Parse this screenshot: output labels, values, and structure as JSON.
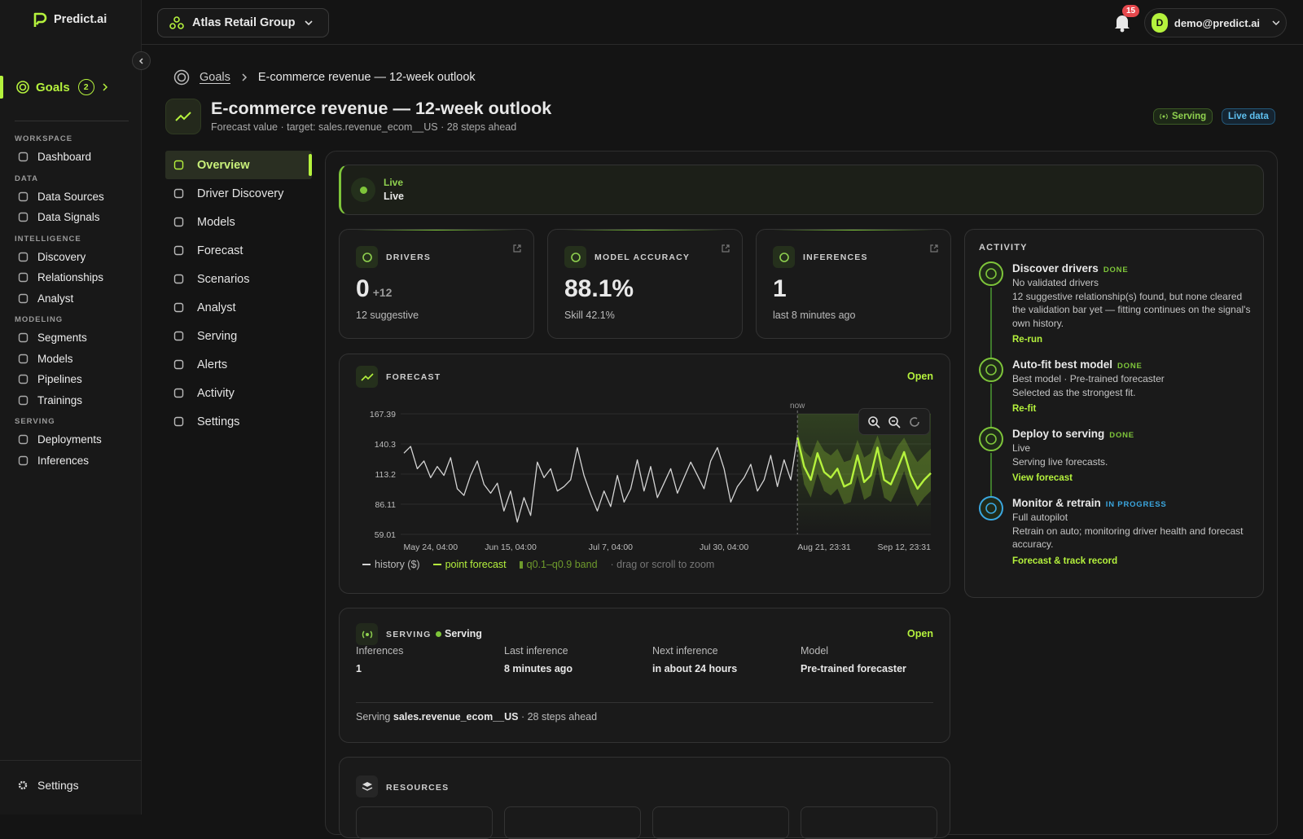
{
  "brand": "Predict.ai",
  "org": "Atlas Retail Group",
  "notifications": 15,
  "user": {
    "avatar": "D",
    "email": "demo@predict.ai"
  },
  "sidebar": {
    "goals": {
      "label": "Goals",
      "count": 2
    },
    "sections": [
      {
        "label": "WORKSPACE",
        "items": [
          "Dashboard"
        ]
      },
      {
        "label": "DATA",
        "items": [
          "Data Sources",
          "Data Signals"
        ]
      },
      {
        "label": "INTELLIGENCE",
        "items": [
          "Discovery",
          "Relationships",
          "Analyst"
        ]
      },
      {
        "label": "MODELING",
        "items": [
          "Segments",
          "Models",
          "Pipelines",
          "Trainings"
        ]
      },
      {
        "label": "SERVING",
        "items": [
          "Deployments",
          "Inferences"
        ]
      }
    ],
    "footer": "Settings"
  },
  "breadcrumb": [
    "Goals",
    "E-commerce revenue — 12-week outlook"
  ],
  "header": {
    "title": "E-commerce revenue — 12-week outlook",
    "subtitle": "Forecast value · target: sales.revenue_ecom__US · 28 steps ahead",
    "badges": [
      "Serving",
      "Live data"
    ]
  },
  "subnav": {
    "items": [
      "Overview",
      "Driver Discovery",
      "Models",
      "Forecast",
      "Scenarios",
      "Analyst",
      "Serving",
      "Alerts",
      "Activity",
      "Settings"
    ],
    "active": 0
  },
  "live": {
    "label": "Live",
    "status": "Live"
  },
  "metrics": [
    {
      "label": "DRIVERS",
      "value": 0,
      "delta": "+12",
      "note": "12 suggestive"
    },
    {
      "label": "MODEL ACCURACY",
      "value": "88.1%",
      "note": "Skill 42.1%"
    },
    {
      "label": "INFERENCES",
      "value": 1,
      "note": "last 8 minutes ago"
    }
  ],
  "forecast_card": {
    "label": "FORECAST",
    "action": "Open",
    "hint": "· drag or scroll to zoom"
  },
  "chart_data": {
    "type": "line",
    "annotation": "now",
    "categories": [
      null,
      null,
      null,
      null,
      "May 24, 04:00",
      null,
      null,
      null,
      null,
      null,
      null,
      null,
      null,
      null,
      null,
      null,
      "Jun 15, 04:00",
      null,
      null,
      null,
      null,
      null,
      null,
      null,
      null,
      null,
      null,
      null,
      null,
      null,
      null,
      "Jul 7, 04:00",
      null,
      null,
      null,
      null,
      null,
      null,
      null,
      null,
      null,
      null,
      null,
      null,
      null,
      null,
      null,
      null,
      "Jul 30, 04:00",
      null,
      null,
      null,
      null,
      null,
      null,
      null,
      null,
      null,
      null,
      null,
      null,
      null,
      null,
      "Aug 21, 23:31",
      null,
      null,
      null,
      null,
      null,
      null,
      null,
      null,
      null,
      null,
      null,
      "Sep 12, 23:31",
      null,
      null,
      null,
      null
    ],
    "series": [
      {
        "name": "history ($)",
        "color": "#d4d4d4",
        "values": [
          132,
          138,
          118,
          125,
          110,
          120,
          112,
          128,
          100,
          94,
          112,
          125,
          104,
          96,
          105,
          80,
          98,
          70,
          92,
          76,
          124,
          110,
          118,
          98,
          102,
          108,
          137,
          112,
          95,
          80,
          98,
          84,
          112,
          88,
          100,
          126,
          98,
          120,
          92,
          105,
          118,
          96,
          110,
          124,
          112,
          100,
          125,
          137,
          118,
          88,
          102,
          110,
          122,
          98,
          108,
          130,
          102,
          126,
          108,
          146,
          null,
          null,
          null,
          null,
          null,
          null,
          null,
          null,
          null,
          null,
          null,
          null,
          null,
          null,
          null,
          null,
          null,
          null,
          null,
          null
        ]
      },
      {
        "name": "point forecast",
        "color": "#b5f23d",
        "values": [
          null,
          null,
          null,
          null,
          null,
          null,
          null,
          null,
          null,
          null,
          null,
          null,
          null,
          null,
          null,
          null,
          null,
          null,
          null,
          null,
          null,
          null,
          null,
          null,
          null,
          null,
          null,
          null,
          null,
          null,
          null,
          null,
          null,
          null,
          null,
          null,
          null,
          null,
          null,
          null,
          null,
          null,
          null,
          null,
          null,
          null,
          null,
          null,
          null,
          null,
          null,
          null,
          null,
          null,
          null,
          null,
          null,
          null,
          null,
          146,
          120,
          108,
          132,
          115,
          110,
          118,
          102,
          105,
          130,
          106,
          112,
          137,
          108,
          104,
          118,
          133,
          112,
          100,
          108,
          114
        ]
      },
      {
        "name": "q0.1–q0.9 band",
        "color": "#6e9a2c",
        "values": [
          null,
          null,
          null,
          null,
          null,
          null,
          null,
          null,
          null,
          null,
          null,
          null,
          null,
          null,
          null,
          null,
          null,
          null,
          null,
          null,
          null,
          null,
          null,
          null,
          null,
          null,
          null,
          null,
          null,
          null,
          null,
          null,
          null,
          null,
          null,
          null,
          null,
          null,
          null,
          null,
          null,
          null,
          null,
          null,
          null,
          null,
          null,
          null,
          null,
          null,
          null,
          null,
          null,
          null,
          null,
          null,
          null,
          null,
          null,
          150,
          134,
          128,
          144,
          134,
          130,
          136,
          124,
          126,
          144,
          128,
          132,
          148,
          130,
          126,
          138,
          146,
          134,
          124,
          130,
          136
        ],
        "lower": [
          null,
          null,
          null,
          null,
          null,
          null,
          null,
          null,
          null,
          null,
          null,
          null,
          null,
          null,
          null,
          null,
          null,
          null,
          null,
          null,
          null,
          null,
          null,
          null,
          null,
          null,
          null,
          null,
          null,
          null,
          null,
          null,
          null,
          null,
          null,
          null,
          null,
          null,
          null,
          null,
          null,
          null,
          null,
          null,
          null,
          null,
          null,
          null,
          null,
          null,
          null,
          null,
          null,
          null,
          null,
          null,
          null,
          null,
          null,
          140,
          104,
          92,
          114,
          98,
          94,
          100,
          86,
          88,
          112,
          90,
          94,
          120,
          92,
          88,
          100,
          116,
          96,
          84,
          92,
          98
        ]
      }
    ],
    "ylim": [
      59.01,
      167.39
    ],
    "yticks": [
      59.01,
      86.11,
      113.2,
      140.3,
      167.39
    ],
    "grid": true
  },
  "serving": {
    "label": "SERVING",
    "status": "Serving",
    "action": "Open",
    "fields": [
      {
        "label": "Inferences",
        "value": 1
      },
      {
        "label": "Last inference",
        "value": "8 minutes ago"
      },
      {
        "label": "Next inference",
        "value": "in about 24 hours"
      },
      {
        "label": "Model",
        "value": "Pre-trained forecaster"
      }
    ],
    "footer": {
      "prefix": "Serving",
      "target": "sales.revenue_ecom__US",
      "suffix": "· 28 steps ahead"
    }
  },
  "resources": {
    "label": "RESOURCES"
  },
  "activity": {
    "label": "ACTIVITY",
    "items": [
      {
        "title": "Discover drivers",
        "status": "DONE",
        "color": "#7ec53a",
        "lines": [
          "No validated drivers",
          "12 suggestive relationship(s) found, but none cleared the validation bar yet — fitting continues on the signal's own history."
        ],
        "action": "Re-run"
      },
      {
        "title": "Auto-fit best model",
        "status": "DONE",
        "color": "#7ec53a",
        "lines": [
          "Best model · Pre-trained forecaster",
          "Selected as the strongest fit."
        ],
        "action": "Re-fit"
      },
      {
        "title": "Deploy to serving",
        "status": "DONE",
        "color": "#7ec53a",
        "lines": [
          "Live",
          "Serving live forecasts."
        ],
        "action": "View forecast"
      },
      {
        "title": "Monitor & retrain",
        "status": "IN PROGRESS",
        "color": "#3ba7e0",
        "lines": [
          "Full autopilot",
          "Retrain on auto; monitoring driver health and forecast accuracy."
        ],
        "action": "Forecast & track record"
      }
    ]
  }
}
